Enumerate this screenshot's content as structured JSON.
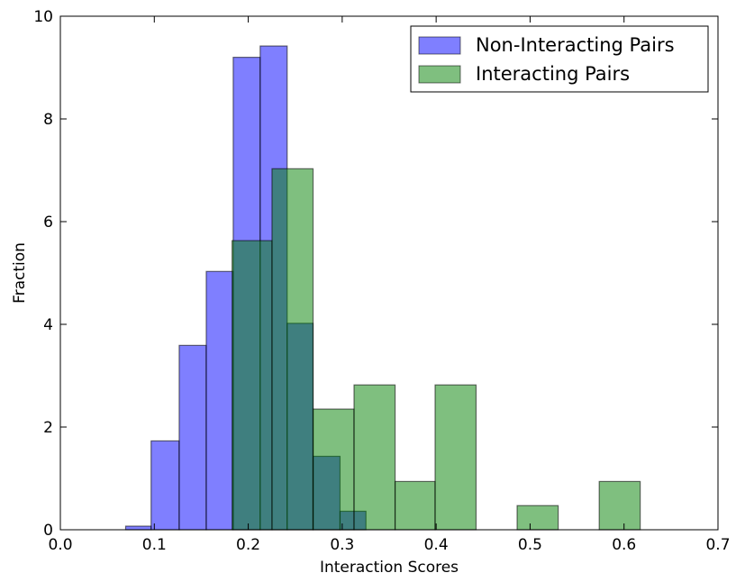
{
  "chart_data": {
    "type": "bar",
    "title": "",
    "xlabel": "Interaction Scores",
    "ylabel": "Fraction",
    "xlim": [
      0.0,
      0.7
    ],
    "ylim": [
      0,
      10
    ],
    "x_ticks": [
      "0.0",
      "0.1",
      "0.2",
      "0.3",
      "0.4",
      "0.5",
      "0.6",
      "0.7"
    ],
    "y_ticks": [
      "0",
      "2",
      "4",
      "6",
      "8",
      "10"
    ],
    "legend_position": "top-right",
    "grid": false,
    "series": [
      {
        "name": "Non-Interacting Pairs",
        "color": "#0000ff",
        "opacity": 0.5,
        "bins": [
          {
            "x0": 0.0695,
            "x1": 0.0966,
            "value": 0.07
          },
          {
            "x0": 0.0966,
            "x1": 0.1265,
            "value": 1.73
          },
          {
            "x0": 0.1265,
            "x1": 0.1553,
            "value": 3.59
          },
          {
            "x0": 0.1553,
            "x1": 0.184,
            "value": 5.03
          },
          {
            "x0": 0.184,
            "x1": 0.2127,
            "value": 9.2
          },
          {
            "x0": 0.2127,
            "x1": 0.2414,
            "value": 9.42
          },
          {
            "x0": 0.2414,
            "x1": 0.269,
            "value": 4.02
          },
          {
            "x0": 0.269,
            "x1": 0.2977,
            "value": 1.43
          },
          {
            "x0": 0.2977,
            "x1": 0.3253,
            "value": 0.36
          }
        ]
      },
      {
        "name": "Interacting Pairs",
        "color": "#008000",
        "opacity": 0.5,
        "bins": [
          {
            "x0": 0.1828,
            "x1": 0.2253,
            "value": 5.63
          },
          {
            "x0": 0.2253,
            "x1": 0.269,
            "value": 7.03
          },
          {
            "x0": 0.269,
            "x1": 0.3126,
            "value": 2.35
          },
          {
            "x0": 0.3126,
            "x1": 0.3563,
            "value": 2.82
          },
          {
            "x0": 0.3563,
            "x1": 0.3989,
            "value": 0.94
          },
          {
            "x0": 0.3989,
            "x1": 0.4425,
            "value": 2.82
          },
          {
            "x0": 0.4425,
            "x1": 0.4862,
            "value": 0
          },
          {
            "x0": 0.4862,
            "x1": 0.5299,
            "value": 0.47
          },
          {
            "x0": 0.5299,
            "x1": 0.5736,
            "value": 0
          },
          {
            "x0": 0.5736,
            "x1": 0.6172,
            "value": 0.94
          }
        ]
      }
    ]
  }
}
